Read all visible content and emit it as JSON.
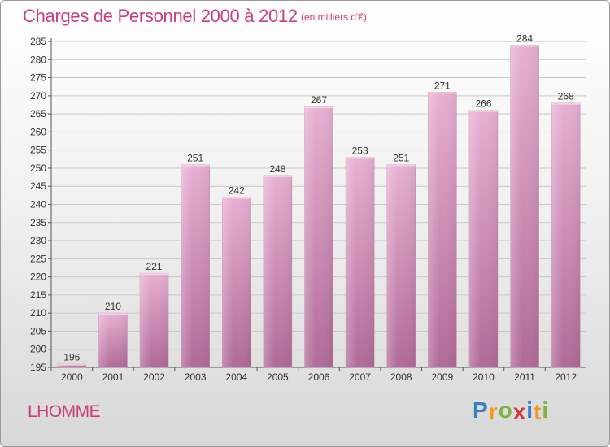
{
  "title": "Charges de Personnel 2000 à 2012",
  "unit": "(en milliers d'€)",
  "commune": "LHOMME",
  "logo": {
    "letters": [
      "P",
      "r",
      "o",
      "x",
      "i",
      "t",
      "i"
    ],
    "colors": [
      "#3a7fc1",
      "#f29a1f",
      "#7ab541",
      "#d8383b",
      "#3a7fc1",
      "#f29a1f",
      "#7ab541"
    ]
  },
  "colors": {
    "bar_top": "#e8b0d2",
    "bar_bottom": "#b06a98",
    "text_accent": "#cc3d7e",
    "grid": "#c8c8c8"
  },
  "chart_data": {
    "type": "bar",
    "title": "Charges de Personnel 2000 à 2012",
    "categories": [
      "2000",
      "2001",
      "2002",
      "2003",
      "2004",
      "2005",
      "2006",
      "2007",
      "2008",
      "2009",
      "2010",
      "2011",
      "2012"
    ],
    "values": [
      196,
      210,
      221,
      251,
      242,
      248,
      267,
      253,
      251,
      271,
      266,
      284,
      268
    ],
    "ylim": [
      195,
      285
    ],
    "yticks": [
      195,
      200,
      205,
      210,
      215,
      220,
      225,
      230,
      235,
      240,
      245,
      250,
      255,
      260,
      265,
      270,
      275,
      280,
      285
    ],
    "grid": true,
    "xlabel": "",
    "ylabel": ""
  }
}
